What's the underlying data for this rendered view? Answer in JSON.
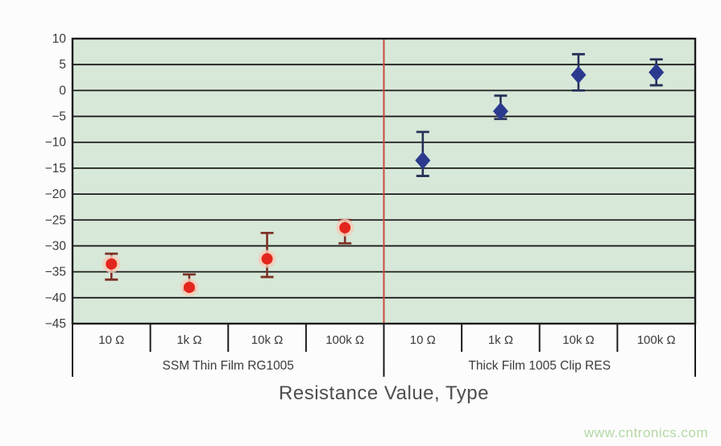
{
  "title": "Resistance Value, Type",
  "watermark": "www.cntronics.com",
  "chart_data": {
    "type": "scatter",
    "xlabel": "Resistance Value, Type",
    "ylabel": "",
    "ylim": [
      -45,
      10
    ],
    "ytick_step": 5,
    "yticks": [
      10,
      5,
      0,
      -5,
      -10,
      -15,
      -20,
      -25,
      -30,
      -35,
      -40,
      -45
    ],
    "grid": true,
    "plot_bg": "#d7e8d8",
    "grid_color": "#1c1c1c",
    "divider_color": "#c84a45",
    "groups": [
      {
        "label": "SSM Thin Film RG1005",
        "marker": "circle",
        "color": "#e3261d",
        "halo": "#f6cab8",
        "bar_color": "#7d3126",
        "categories": [
          "10 Ω",
          "1k Ω",
          "10k Ω",
          "100k Ω"
        ],
        "points": [
          {
            "category": "10 Ω",
            "value": -33.5,
            "err_hi": -31.5,
            "err_lo": -36.5
          },
          {
            "category": "1k Ω",
            "value": -38.0,
            "err_hi": -35.5,
            "err_lo": -38.5
          },
          {
            "category": "10k Ω",
            "value": -32.5,
            "err_hi": -27.5,
            "err_lo": -36.0
          },
          {
            "category": "100k Ω",
            "value": -26.5,
            "err_hi": -25.0,
            "err_lo": -29.5
          }
        ]
      },
      {
        "label": "Thick Film 1005 Clip RES",
        "marker": "diamond",
        "color": "#2b3a8e",
        "halo": "#c2cbe4",
        "bar_color": "#263058",
        "categories": [
          "10 Ω",
          "1k Ω",
          "10k Ω",
          "100k Ω"
        ],
        "points": [
          {
            "category": "10 Ω",
            "value": -13.5,
            "err_hi": -8.0,
            "err_lo": -16.5
          },
          {
            "category": "1k Ω",
            "value": -4.0,
            "err_hi": -1.0,
            "err_lo": -5.5
          },
          {
            "category": "10k Ω",
            "value": 3.0,
            "err_hi": 7.0,
            "err_lo": 0.0
          },
          {
            "category": "100k Ω",
            "value": 3.5,
            "err_hi": 6.0,
            "err_lo": 1.0
          }
        ]
      }
    ]
  }
}
